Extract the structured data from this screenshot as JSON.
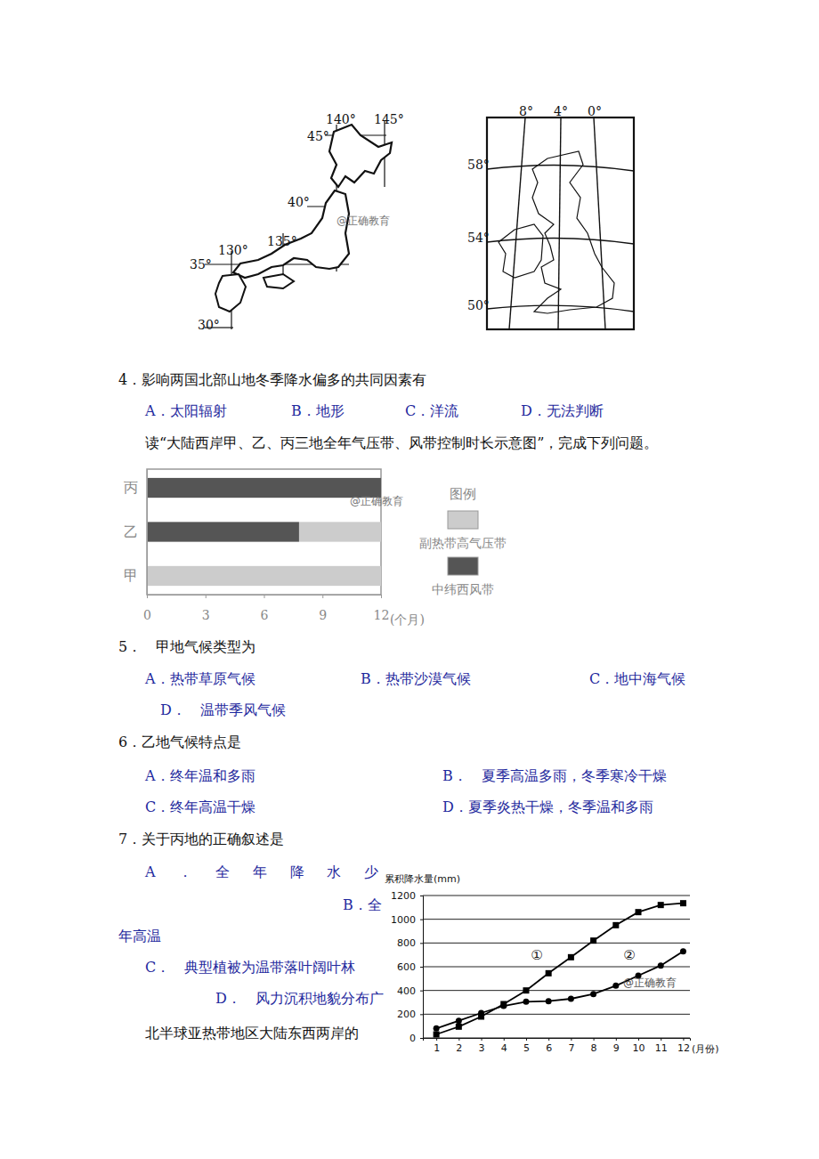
{
  "watermark": "@正确教育",
  "maps": {
    "japan": {
      "lon_labels": [
        "140°",
        "145°",
        "130°",
        "135°"
      ],
      "lat_labels": [
        "45°",
        "40°",
        "35°",
        "30°"
      ]
    },
    "uk": {
      "lon_labels": [
        "8°",
        "4°",
        "0°"
      ],
      "lat_labels": [
        "58°",
        "54°",
        "50°"
      ]
    }
  },
  "intro": "读“大陆西岸甲、乙、丙三地全年气压带、风带控制时长示意图”，完成下列问题。",
  "questions": [
    {
      "stem": "4．影响两国北部山地冬季降水偏多的共同因素有",
      "options": [
        [
          "A．太阳辐射"
        ],
        [
          "B．地形"
        ],
        [
          "C．洋流"
        ],
        [
          "D．无法判断"
        ]
      ]
    },
    {
      "stem": "5．　甲地气候类型为",
      "options": [
        [
          "A．热带草原气候"
        ],
        [
          "B．热带沙漠气候"
        ],
        [
          "C．地中海气候"
        ],
        [
          "D．　温带季风气候"
        ]
      ]
    },
    {
      "stem": "6．乙地气候特点是",
      "options": [
        [
          "A．终年温和多雨"
        ],
        [
          "B．　夏季高温多雨，冬季寒冷干燥"
        ],
        [
          "C．终年高温干燥"
        ],
        [
          "D．夏季炎热干燥，冬季温和多雨"
        ]
      ]
    },
    {
      "stem": "7．关于丙地的正确叙述是",
      "options": [
        [
          "A．全年降水少"
        ],
        [
          "B．全",
          "年高温"
        ],
        [
          "C．　典型植被为温带落叶阔叶林"
        ],
        [
          "D．　风力沉积地貌分布广"
        ]
      ]
    }
  ],
  "next_fragment": "北半球亚热带地区大陆东西两岸的",
  "chart_data": [
    {
      "type": "bar",
      "orientation": "horizontal",
      "stacked": true,
      "categories": [
        "甲",
        "乙",
        "丙"
      ],
      "series": [
        {
          "name": "中纬西风带",
          "color": "#555555",
          "values": [
            0,
            7.8,
            12
          ]
        },
        {
          "name": "副热带高气压带",
          "color": "#cccccc",
          "values": [
            12,
            4.2,
            0
          ]
        }
      ],
      "xlim": [
        0,
        12
      ],
      "xticks": [
        0,
        3,
        6,
        9,
        12
      ],
      "x_label": "(个月)",
      "legend_title": "图例",
      "legend": "right"
    },
    {
      "type": "line",
      "y_label": "累积降水量(mm)",
      "x_label": "(月份)",
      "x": [
        1,
        2,
        3,
        4,
        5,
        6,
        7,
        8,
        9,
        10,
        11,
        12
      ],
      "xlim": [
        0.4,
        12.3
      ],
      "xticks": [
        1,
        2,
        3,
        4,
        5,
        6,
        7,
        8,
        9,
        10,
        11,
        12
      ],
      "ylim": [
        0,
        1200
      ],
      "yticks": [
        0,
        200,
        400,
        600,
        800,
        1000,
        1200
      ],
      "grid": true,
      "series": [
        {
          "name": "①",
          "color": "#000000",
          "marker": "square",
          "values": [
            30,
            95,
            180,
            285,
            400,
            545,
            680,
            820,
            950,
            1060,
            1120,
            1135
          ]
        },
        {
          "name": "②",
          "color": "#000000",
          "marker": "circle",
          "values": [
            80,
            145,
            210,
            270,
            305,
            310,
            330,
            370,
            440,
            525,
            610,
            730
          ]
        }
      ]
    }
  ]
}
